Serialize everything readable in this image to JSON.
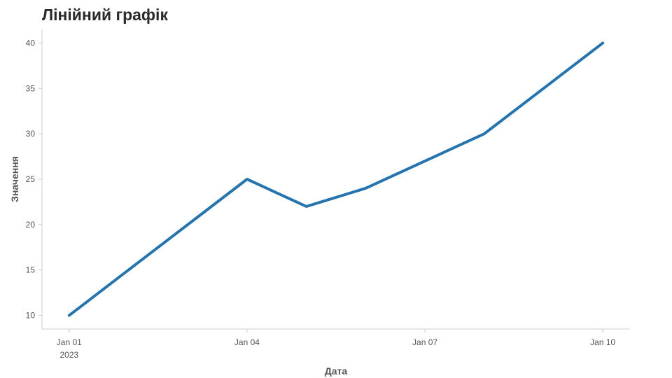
{
  "chart_data": {
    "type": "line",
    "title": "Лінійний графік",
    "xlabel": "Дата",
    "ylabel": "Значення",
    "x": [
      "2023-01-01",
      "2023-01-02",
      "2023-01-03",
      "2023-01-04",
      "2023-01-05",
      "2023-01-06",
      "2023-01-07",
      "2023-01-08",
      "2023-01-09",
      "2023-01-10"
    ],
    "series": [
      {
        "values": [
          10,
          15,
          20,
          25,
          22,
          24,
          27,
          30,
          35,
          40
        ]
      }
    ],
    "xticks": [
      {
        "x": "2023-01-01",
        "label": "Jan 01",
        "sublabel": "2023"
      },
      {
        "x": "2023-01-04",
        "label": "Jan 04",
        "sublabel": ""
      },
      {
        "x": "2023-01-07",
        "label": "Jan 07",
        "sublabel": ""
      },
      {
        "x": "2023-01-10",
        "label": "Jan 10",
        "sublabel": ""
      }
    ],
    "yticks": [
      10,
      15,
      20,
      25,
      30,
      35,
      40
    ],
    "xlim": [
      "2022-12-31T13:00:00",
      "2023-01-10T11:00:00"
    ],
    "ylim": [
      8.5,
      41.5
    ],
    "grid": false,
    "line_color": "#2474b0"
  }
}
